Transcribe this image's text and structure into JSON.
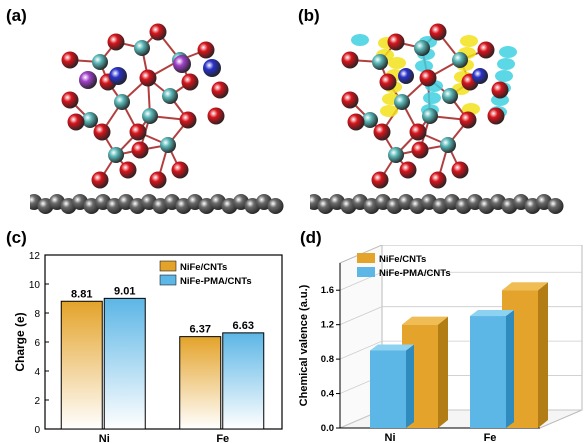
{
  "panels": {
    "a": "(a)",
    "b": "(b)",
    "c": "(c)",
    "d": "(d)"
  },
  "colors": {
    "orange": "#e4a32a",
    "blue": "#5cb6e6",
    "red_atom": "#d8141c",
    "teal_atom": "#5ab8b8",
    "blue_atom": "#2a32c8",
    "purple_atom": "#a040c8",
    "grey_atom": "#6a6a6a",
    "yellow_iso": "#f2e21a",
    "cyan_iso": "#3fd0e0"
  },
  "chart_data": [
    {
      "type": "bar",
      "panel": "(c)",
      "categories": [
        "Ni",
        "Fe"
      ],
      "series": [
        {
          "name": "NiFe/CNTs",
          "values": [
            8.81,
            6.37
          ]
        },
        {
          "name": "NiFe-PMA/CNTs",
          "values": [
            9.01,
            6.63
          ]
        }
      ],
      "data_labels": [
        "8.81",
        "9.01",
        "6.37",
        "6.63"
      ],
      "ylabel": "Charge (e)",
      "ylim": [
        0,
        12
      ],
      "yticks": [
        0,
        2,
        4,
        6,
        8,
        10,
        12
      ],
      "grid": false,
      "legend": "top-right"
    },
    {
      "type": "bar",
      "panel": "(d)",
      "categories": [
        "Ni",
        "Fe"
      ],
      "series": [
        {
          "name": "NiFe/CNTs",
          "values": [
            1.2,
            1.6
          ]
        },
        {
          "name": "NiFe-PMA/CNTs",
          "values": [
            0.9,
            1.3
          ]
        }
      ],
      "ylabel": "Chemical valence (a.u.)",
      "ylim": [
        0,
        1.8
      ],
      "yticks": [
        "0.0",
        "0.4",
        "0.8",
        "1.2",
        "1.6"
      ],
      "grid": true,
      "legend": "top-left"
    }
  ]
}
